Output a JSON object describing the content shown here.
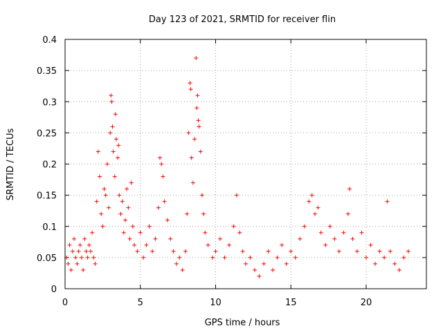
{
  "chart_data": {
    "type": "scatter",
    "title": "Day 123 of 2021, SRMTID for receiver flin",
    "xlabel": "GPS time / hours",
    "ylabel": "SRMTID / TECUs",
    "xlim": [
      0,
      24
    ],
    "ylim": [
      0,
      0.4
    ],
    "xticks": [
      0,
      5,
      10,
      15,
      20
    ],
    "yticks": [
      0,
      0.05,
      0.1,
      0.15,
      0.2,
      0.25,
      0.3,
      0.35,
      0.4
    ],
    "xtick_labels": [
      "0",
      "5",
      "10",
      "15",
      "20"
    ],
    "ytick_labels": [
      "0",
      "0.05",
      "0.1",
      "0.15",
      "0.2",
      "0.25",
      "0.3",
      "0.35",
      "0.4"
    ],
    "grid": true,
    "marker": "+",
    "marker_color": "#ff0000",
    "series": [
      {
        "points": [
          [
            0.1,
            0.05
          ],
          [
            0.2,
            0.04
          ],
          [
            0.3,
            0.07
          ],
          [
            0.4,
            0.03
          ],
          [
            0.5,
            0.06
          ],
          [
            0.6,
            0.08
          ],
          [
            0.7,
            0.05
          ],
          [
            0.8,
            0.04
          ],
          [
            0.9,
            0.06
          ],
          [
            1.0,
            0.07
          ],
          [
            1.1,
            0.05
          ],
          [
            1.2,
            0.03
          ],
          [
            1.3,
            0.08
          ],
          [
            1.4,
            0.06
          ],
          [
            1.5,
            0.05
          ],
          [
            1.6,
            0.07
          ],
          [
            1.7,
            0.06
          ],
          [
            1.8,
            0.09
          ],
          [
            1.9,
            0.05
          ],
          [
            2.0,
            0.04
          ],
          [
            2.1,
            0.14
          ],
          [
            2.2,
            0.22
          ],
          [
            2.3,
            0.18
          ],
          [
            2.4,
            0.12
          ],
          [
            2.5,
            0.1
          ],
          [
            2.6,
            0.16
          ],
          [
            2.7,
            0.15
          ],
          [
            2.8,
            0.2
          ],
          [
            2.9,
            0.13
          ],
          [
            3.0,
            0.25
          ],
          [
            3.05,
            0.31
          ],
          [
            3.1,
            0.3
          ],
          [
            3.15,
            0.26
          ],
          [
            3.2,
            0.22
          ],
          [
            3.3,
            0.18
          ],
          [
            3.35,
            0.28
          ],
          [
            3.4,
            0.24
          ],
          [
            3.5,
            0.21
          ],
          [
            3.55,
            0.23
          ],
          [
            3.6,
            0.15
          ],
          [
            3.7,
            0.12
          ],
          [
            3.8,
            0.14
          ],
          [
            3.9,
            0.09
          ],
          [
            4.0,
            0.11
          ],
          [
            4.1,
            0.16
          ],
          [
            4.2,
            0.13
          ],
          [
            4.3,
            0.08
          ],
          [
            4.4,
            0.17
          ],
          [
            4.5,
            0.1
          ],
          [
            4.6,
            0.07
          ],
          [
            4.8,
            0.06
          ],
          [
            5.0,
            0.09
          ],
          [
            5.2,
            0.05
          ],
          [
            5.4,
            0.07
          ],
          [
            5.6,
            0.1
          ],
          [
            5.8,
            0.06
          ],
          [
            6.0,
            0.08
          ],
          [
            6.2,
            0.13
          ],
          [
            6.3,
            0.21
          ],
          [
            6.4,
            0.2
          ],
          [
            6.5,
            0.18
          ],
          [
            6.6,
            0.14
          ],
          [
            6.8,
            0.11
          ],
          [
            7.0,
            0.08
          ],
          [
            7.2,
            0.06
          ],
          [
            7.4,
            0.04
          ],
          [
            7.6,
            0.05
          ],
          [
            7.8,
            0.03
          ],
          [
            8.0,
            0.06
          ],
          [
            8.1,
            0.12
          ],
          [
            8.2,
            0.25
          ],
          [
            8.3,
            0.33
          ],
          [
            8.35,
            0.32
          ],
          [
            8.4,
            0.21
          ],
          [
            8.5,
            0.17
          ],
          [
            8.6,
            0.24
          ],
          [
            8.7,
            0.37
          ],
          [
            8.75,
            0.29
          ],
          [
            8.8,
            0.31
          ],
          [
            8.85,
            0.27
          ],
          [
            8.9,
            0.26
          ],
          [
            9.0,
            0.22
          ],
          [
            9.1,
            0.15
          ],
          [
            9.2,
            0.12
          ],
          [
            9.3,
            0.09
          ],
          [
            9.5,
            0.07
          ],
          [
            9.8,
            0.05
          ],
          [
            10.0,
            0.06
          ],
          [
            10.3,
            0.08
          ],
          [
            10.6,
            0.05
          ],
          [
            10.9,
            0.07
          ],
          [
            11.2,
            0.1
          ],
          [
            11.4,
            0.15
          ],
          [
            11.6,
            0.09
          ],
          [
            11.8,
            0.06
          ],
          [
            12.0,
            0.04
          ],
          [
            12.3,
            0.05
          ],
          [
            12.6,
            0.03
          ],
          [
            12.9,
            0.02
          ],
          [
            13.2,
            0.04
          ],
          [
            13.5,
            0.06
          ],
          [
            13.8,
            0.03
          ],
          [
            14.1,
            0.05
          ],
          [
            14.4,
            0.07
          ],
          [
            14.7,
            0.04
          ],
          [
            15.0,
            0.06
          ],
          [
            15.3,
            0.05
          ],
          [
            15.6,
            0.08
          ],
          [
            15.9,
            0.1
          ],
          [
            16.2,
            0.14
          ],
          [
            16.4,
            0.15
          ],
          [
            16.6,
            0.12
          ],
          [
            16.8,
            0.13
          ],
          [
            17.0,
            0.09
          ],
          [
            17.3,
            0.07
          ],
          [
            17.6,
            0.1
          ],
          [
            17.9,
            0.08
          ],
          [
            18.2,
            0.06
          ],
          [
            18.5,
            0.09
          ],
          [
            18.8,
            0.12
          ],
          [
            18.9,
            0.16
          ],
          [
            19.1,
            0.08
          ],
          [
            19.4,
            0.06
          ],
          [
            19.7,
            0.09
          ],
          [
            20.0,
            0.05
          ],
          [
            20.3,
            0.07
          ],
          [
            20.6,
            0.04
          ],
          [
            20.9,
            0.06
          ],
          [
            21.2,
            0.05
          ],
          [
            21.4,
            0.14
          ],
          [
            21.6,
            0.06
          ],
          [
            21.9,
            0.04
          ],
          [
            22.2,
            0.03
          ],
          [
            22.5,
            0.05
          ],
          [
            22.8,
            0.06
          ]
        ]
      }
    ]
  }
}
